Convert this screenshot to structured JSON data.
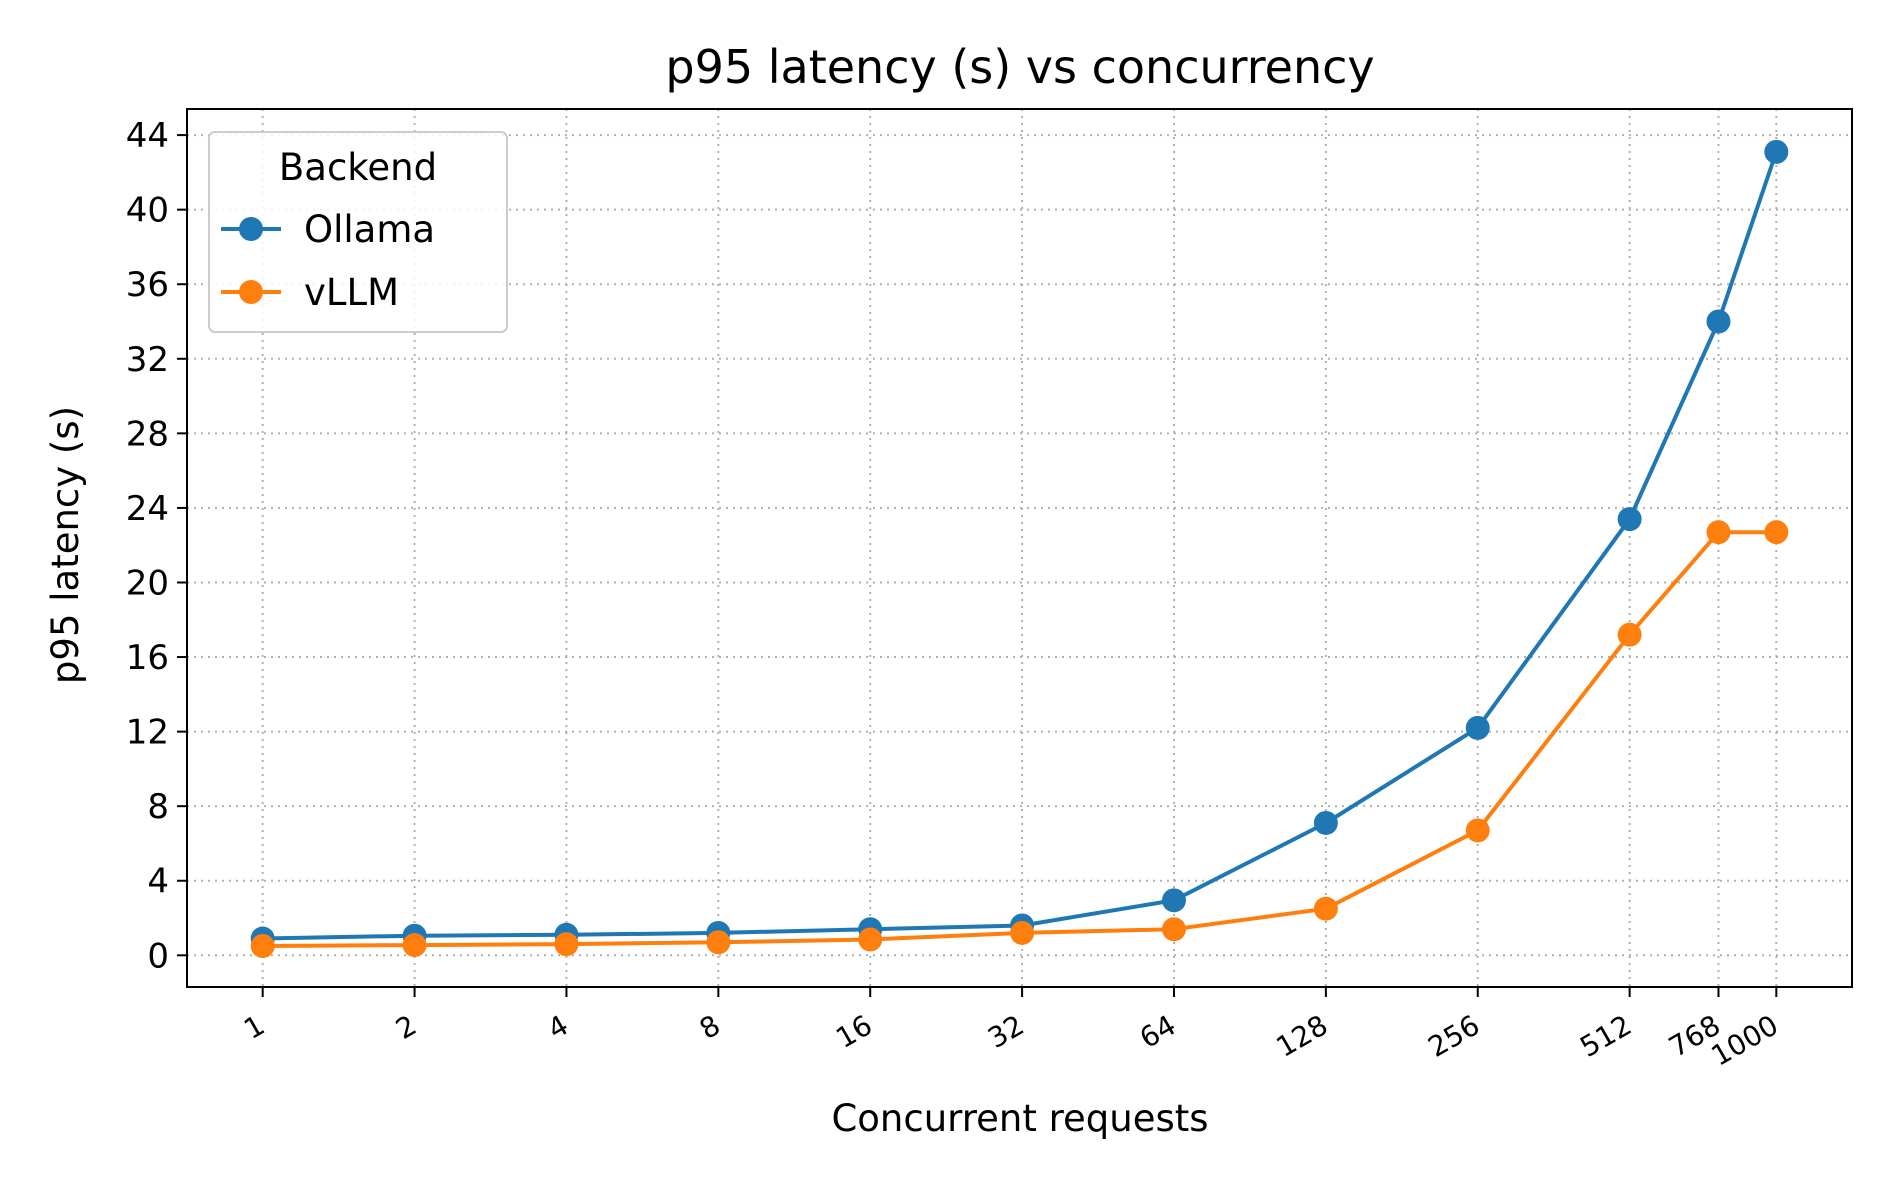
{
  "chart_data": {
    "type": "line",
    "title": "p95 latency (s) vs concurrency",
    "xlabel": "Concurrent requests",
    "ylabel": "p95 latency (s)",
    "x_scale": "log2",
    "categories": [
      "1",
      "2",
      "4",
      "8",
      "16",
      "32",
      "64",
      "128",
      "256",
      "512",
      "768",
      "1000"
    ],
    "x": [
      1,
      2,
      4,
      8,
      16,
      32,
      64,
      128,
      256,
      512,
      768,
      1000
    ],
    "ylim": [
      -1.7,
      45.4
    ],
    "yticks": [
      0,
      4,
      8,
      12,
      16,
      20,
      24,
      28,
      32,
      36,
      40,
      44
    ],
    "grid": true,
    "legend": {
      "title": "Backend",
      "placement": "upper-left"
    },
    "series": [
      {
        "name": "Ollama",
        "color": "#1f77b4",
        "values": [
          0.9,
          1.05,
          1.1,
          1.2,
          1.4,
          1.6,
          2.95,
          7.1,
          12.2,
          23.4,
          34.0,
          43.1
        ]
      },
      {
        "name": "vLLM",
        "color": "#ff7f0e",
        "values": [
          0.5,
          0.55,
          0.6,
          0.7,
          0.85,
          1.2,
          1.4,
          2.5,
          6.7,
          17.2,
          22.7,
          22.7
        ]
      }
    ]
  }
}
